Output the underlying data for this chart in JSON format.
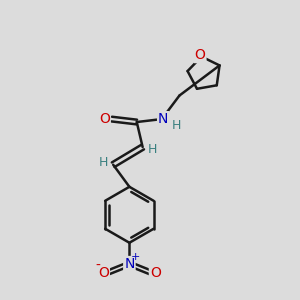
{
  "bg_color": "#dcdcdc",
  "bond_color": "#1a1a1a",
  "atom_colors": {
    "O": "#cc0000",
    "N": "#0000bb",
    "H": "#3a8080",
    "C": "#1a1a1a"
  },
  "figsize": [
    3.0,
    3.0
  ],
  "dpi": 100
}
